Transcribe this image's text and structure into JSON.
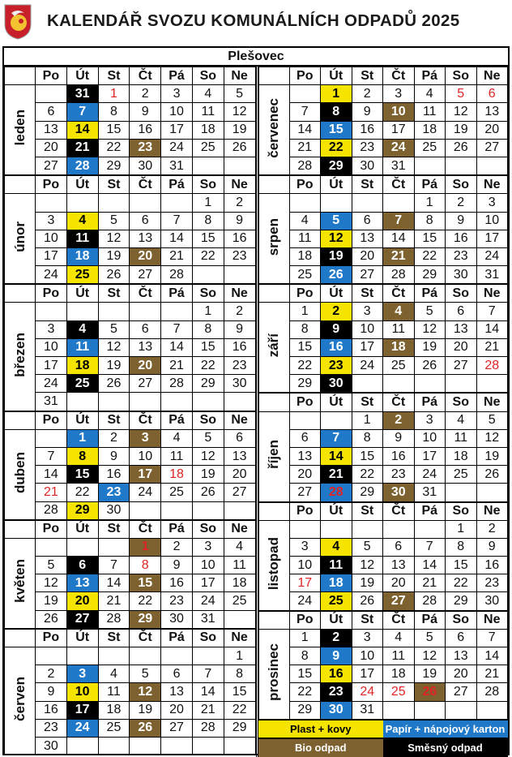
{
  "header": {
    "title": "KALENDÁŘ SVOZU KOMUNÁLNÍCH ODPADŮ 2025",
    "logo": "municipal-coat-of-arms"
  },
  "village": "Plešovec",
  "weekdays": [
    "Po",
    "Út",
    "St",
    "Čt",
    "Pá",
    "So",
    "Ne"
  ],
  "colors": {
    "plast": "#f5e400",
    "papir": "#1f78c8",
    "bio": "#7d6230",
    "smesny": "#000000",
    "holiday": "#e02424"
  },
  "legend": [
    {
      "type": "plast",
      "label": "Plast + kovy"
    },
    {
      "type": "papir",
      "label": "Papír + nápojový karton"
    },
    {
      "type": "bio",
      "label": "Bio odpad"
    },
    {
      "type": "smesny",
      "label": "Směsný odpad"
    }
  ],
  "calendar": {
    "left": [
      {
        "name": "leden",
        "weeks": [
          [
            "",
            {
              "d": "31",
              "t": "smesny"
            },
            {
              "d": "1",
              "h": true
            },
            "2",
            "3",
            "4",
            "5"
          ],
          [
            "6",
            {
              "d": "7",
              "t": "papir"
            },
            "8",
            "9",
            "10",
            "11",
            "12"
          ],
          [
            "13",
            {
              "d": "14",
              "t": "plast"
            },
            "15",
            "16",
            "17",
            "18",
            "19"
          ],
          [
            "20",
            {
              "d": "21",
              "t": "smesny"
            },
            "22",
            {
              "d": "23",
              "t": "bio"
            },
            "24",
            "25",
            "26"
          ],
          [
            "27",
            {
              "d": "28",
              "t": "papir"
            },
            "29",
            "30",
            "31",
            "",
            ""
          ]
        ]
      },
      {
        "name": "únor",
        "weeks": [
          [
            "",
            "",
            "",
            "",
            "",
            "1",
            "2"
          ],
          [
            "3",
            {
              "d": "4",
              "t": "plast"
            },
            "5",
            "6",
            "7",
            "8",
            "9"
          ],
          [
            "10",
            {
              "d": "11",
              "t": "smesny"
            },
            "12",
            "13",
            "14",
            "15",
            "16"
          ],
          [
            "17",
            {
              "d": "18",
              "t": "papir"
            },
            "19",
            {
              "d": "20",
              "t": "bio"
            },
            "21",
            "22",
            "23"
          ],
          [
            "24",
            {
              "d": "25",
              "t": "plast"
            },
            "26",
            "27",
            "28",
            "",
            ""
          ]
        ]
      },
      {
        "name": "březen",
        "weeks": [
          [
            "",
            "",
            "",
            "",
            "",
            "1",
            "2"
          ],
          [
            "3",
            {
              "d": "4",
              "t": "smesny"
            },
            "5",
            "6",
            "7",
            "8",
            "9"
          ],
          [
            "10",
            {
              "d": "11",
              "t": "papir"
            },
            "12",
            "13",
            "14",
            "15",
            "16"
          ],
          [
            "17",
            {
              "d": "18",
              "t": "plast"
            },
            "19",
            {
              "d": "20",
              "t": "bio"
            },
            "21",
            "22",
            "23"
          ],
          [
            "24",
            {
              "d": "25",
              "t": "smesny"
            },
            "26",
            "27",
            "28",
            "29",
            "30"
          ],
          [
            "31",
            "",
            "",
            "",
            "",
            "",
            ""
          ]
        ]
      },
      {
        "name": "duben",
        "weeks": [
          [
            "",
            {
              "d": "1",
              "t": "papir"
            },
            "2",
            {
              "d": "3",
              "t": "bio"
            },
            "4",
            "5",
            "6"
          ],
          [
            "7",
            {
              "d": "8",
              "t": "plast"
            },
            "9",
            "10",
            "11",
            "12",
            "13"
          ],
          [
            "14",
            {
              "d": "15",
              "t": "smesny"
            },
            "16",
            {
              "d": "17",
              "t": "bio"
            },
            {
              "d": "18",
              "h": true
            },
            "19",
            "20"
          ],
          [
            {
              "d": "21",
              "h": true
            },
            "22",
            {
              "d": "23",
              "t": "papir"
            },
            "24",
            "25",
            "26",
            "27"
          ],
          [
            "28",
            {
              "d": "29",
              "t": "plast"
            },
            "30",
            "",
            "",
            "",
            ""
          ]
        ]
      },
      {
        "name": "květen",
        "weeks": [
          [
            "",
            "",
            "",
            {
              "d": "1",
              "t": "bio",
              "h": true
            },
            "2",
            "3",
            "4"
          ],
          [
            "5",
            {
              "d": "6",
              "t": "smesny"
            },
            "7",
            {
              "d": "8",
              "h": true
            },
            "9",
            "10",
            "11"
          ],
          [
            "12",
            {
              "d": "13",
              "t": "papir"
            },
            "14",
            {
              "d": "15",
              "t": "bio"
            },
            "16",
            "17",
            "18"
          ],
          [
            "19",
            {
              "d": "20",
              "t": "plast"
            },
            "21",
            "22",
            "23",
            "24",
            "25"
          ],
          [
            "26",
            {
              "d": "27",
              "t": "smesny"
            },
            "28",
            {
              "d": "29",
              "t": "bio"
            },
            "30",
            "31",
            ""
          ]
        ]
      },
      {
        "name": "červen",
        "weeks": [
          [
            "",
            "",
            "",
            "",
            "",
            "",
            "1"
          ],
          [
            "2",
            {
              "d": "3",
              "t": "papir"
            },
            "4",
            "5",
            "6",
            "7",
            "8"
          ],
          [
            "9",
            {
              "d": "10",
              "t": "plast"
            },
            "11",
            {
              "d": "12",
              "t": "bio"
            },
            "13",
            "14",
            "15"
          ],
          [
            "16",
            {
              "d": "17",
              "t": "smesny"
            },
            "18",
            "19",
            "20",
            "21",
            "22"
          ],
          [
            "23",
            {
              "d": "24",
              "t": "papir"
            },
            "25",
            {
              "d": "26",
              "t": "bio"
            },
            "27",
            "28",
            "29"
          ],
          [
            "30",
            "",
            "",
            "",
            "",
            "",
            ""
          ]
        ]
      }
    ],
    "right": [
      {
        "name": "červenec",
        "weeks": [
          [
            "",
            {
              "d": "1",
              "t": "plast"
            },
            "2",
            "3",
            "4",
            {
              "d": "5",
              "h": true
            },
            {
              "d": "6",
              "h": true
            }
          ],
          [
            "7",
            {
              "d": "8",
              "t": "smesny"
            },
            "9",
            {
              "d": "10",
              "t": "bio"
            },
            "11",
            "12",
            "13"
          ],
          [
            "14",
            {
              "d": "15",
              "t": "papir"
            },
            "16",
            "17",
            "18",
            "19",
            "20"
          ],
          [
            "21",
            {
              "d": "22",
              "t": "plast"
            },
            "23",
            {
              "d": "24",
              "t": "bio"
            },
            "25",
            "26",
            "27"
          ],
          [
            "28",
            {
              "d": "29",
              "t": "smesny"
            },
            "30",
            "31",
            "",
            "",
            ""
          ]
        ]
      },
      {
        "name": "srpen",
        "weeks": [
          [
            "",
            "",
            "",
            "",
            "1",
            "2",
            "3"
          ],
          [
            "4",
            {
              "d": "5",
              "t": "papir"
            },
            "6",
            {
              "d": "7",
              "t": "bio"
            },
            "8",
            "9",
            "10"
          ],
          [
            "11",
            {
              "d": "12",
              "t": "plast"
            },
            "13",
            "14",
            "15",
            "16",
            "17"
          ],
          [
            "18",
            {
              "d": "19",
              "t": "smesny"
            },
            "20",
            {
              "d": "21",
              "t": "bio"
            },
            "22",
            "23",
            "24"
          ],
          [
            "25",
            {
              "d": "26",
              "t": "papir"
            },
            "27",
            "28",
            "29",
            "30",
            "31"
          ]
        ]
      },
      {
        "name": "září",
        "weeks": [
          [
            "1",
            {
              "d": "2",
              "t": "plast"
            },
            "3",
            {
              "d": "4",
              "t": "bio"
            },
            "5",
            "6",
            "7"
          ],
          [
            "8",
            {
              "d": "9",
              "t": "smesny"
            },
            "10",
            "11",
            "12",
            "13",
            "14"
          ],
          [
            "15",
            {
              "d": "16",
              "t": "papir"
            },
            "17",
            {
              "d": "18",
              "t": "bio"
            },
            "19",
            "20",
            "21"
          ],
          [
            "22",
            {
              "d": "23",
              "t": "plast"
            },
            "24",
            "25",
            "26",
            "27",
            {
              "d": "28",
              "h": true
            }
          ],
          [
            "29",
            {
              "d": "30",
              "t": "smesny"
            },
            "",
            "",
            "",
            "",
            ""
          ]
        ]
      },
      {
        "name": "říjen",
        "weeks": [
          [
            "",
            "",
            "1",
            {
              "d": "2",
              "t": "bio"
            },
            "3",
            "4",
            "5"
          ],
          [
            "6",
            {
              "d": "7",
              "t": "papir"
            },
            "8",
            "9",
            "10",
            "11",
            "12"
          ],
          [
            "13",
            {
              "d": "14",
              "t": "plast"
            },
            "15",
            "16",
            "17",
            "18",
            "19"
          ],
          [
            "20",
            {
              "d": "21",
              "t": "smesny"
            },
            "22",
            "23",
            "24",
            "25",
            "26"
          ],
          [
            "27",
            {
              "d": "28",
              "t": "papir",
              "h": true
            },
            "29",
            {
              "d": "30",
              "t": "bio"
            },
            "31",
            "",
            ""
          ]
        ]
      },
      {
        "name": "listopad",
        "weeks": [
          [
            "",
            "",
            "",
            "",
            "",
            "1",
            "2"
          ],
          [
            "3",
            {
              "d": "4",
              "t": "plast"
            },
            "5",
            "6",
            "7",
            "8",
            "9"
          ],
          [
            "10",
            {
              "d": "11",
              "t": "smesny"
            },
            "12",
            "13",
            "14",
            "15",
            "16"
          ],
          [
            {
              "d": "17",
              "h": true
            },
            {
              "d": "18",
              "t": "papir"
            },
            "19",
            "20",
            "21",
            "22",
            "23"
          ],
          [
            "24",
            {
              "d": "25",
              "t": "plast"
            },
            "26",
            {
              "d": "27",
              "t": "bio"
            },
            "28",
            "29",
            "30"
          ]
        ]
      },
      {
        "name": "prosinec",
        "weeks": [
          [
            "1",
            {
              "d": "2",
              "t": "smesny"
            },
            "3",
            "4",
            "5",
            "6",
            "7"
          ],
          [
            "8",
            {
              "d": "9",
              "t": "papir"
            },
            "10",
            "11",
            "12",
            "13",
            "14"
          ],
          [
            "15",
            {
              "d": "16",
              "t": "plast"
            },
            "17",
            "18",
            "19",
            "20",
            "21"
          ],
          [
            "22",
            {
              "d": "23",
              "t": "smesny"
            },
            {
              "d": "24",
              "h": true
            },
            {
              "d": "25",
              "h": true
            },
            {
              "d": "26",
              "t": "bio",
              "h": true
            },
            "27",
            "28"
          ],
          [
            "29",
            {
              "d": "30",
              "t": "papir"
            },
            "31",
            "",
            "",
            "",
            ""
          ]
        ]
      }
    ]
  }
}
